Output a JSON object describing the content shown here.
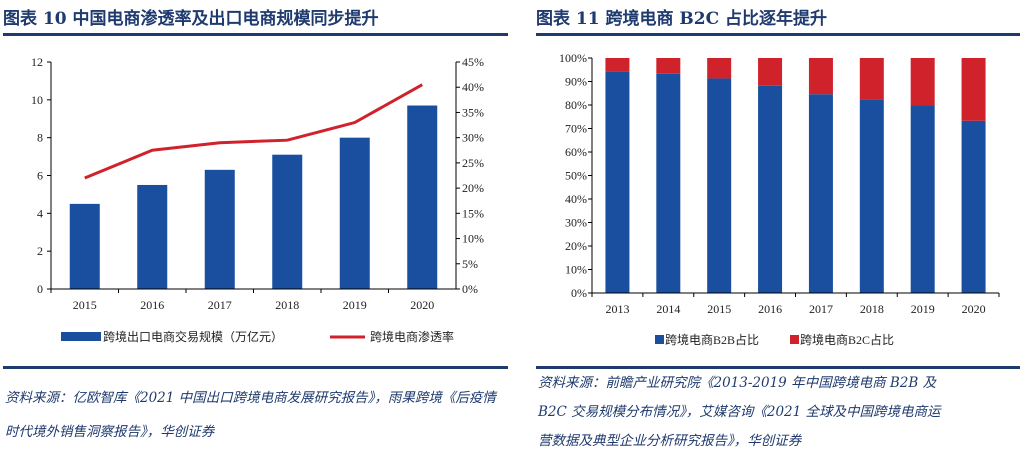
{
  "left": {
    "title": "图表 10   中国电商渗透率及出口电商规模同步提升",
    "source": "资料来源：亿欧智库《2021 中国出口跨境电商发展研究报告》，雨果跨境《后疫情时代境外销售洞察报告》，华创证券"
  },
  "right": {
    "title": "图表 11   跨境电商 B2C 占比逐年提升",
    "source_lines": [
      "资料来源：前瞻产业研究院《2013-2019 年中国跨境电商 B2B 及",
      "B2C 交易规模分布情况》，艾媒咨询《2021 全球及中国跨境电商运",
      "营数据及典型企业分析研究报告》，华创证券"
    ]
  },
  "colors": {
    "blue": "#1a4fa0",
    "red": "#d0222b",
    "rule": "#1f3a6e"
  },
  "chart_data": [
    {
      "type": "bar+line",
      "categories": [
        "2015",
        "2016",
        "2017",
        "2018",
        "2019",
        "2020"
      ],
      "series": [
        {
          "name": "跨境出口电商交易规模（万亿元）",
          "type": "bar",
          "axis": "left",
          "values": [
            4.5,
            5.5,
            6.3,
            7.1,
            8.0,
            9.7
          ]
        },
        {
          "name": "跨境电商渗透率",
          "type": "line",
          "axis": "right",
          "values": [
            22.0,
            27.5,
            29.0,
            29.5,
            33.0,
            40.5
          ]
        }
      ],
      "ylim": [
        0,
        12
      ],
      "yticks": [
        "0",
        "2",
        "4",
        "6",
        "8",
        "10",
        "12"
      ],
      "y2lim": [
        0,
        45
      ],
      "y2ticks": [
        "0%",
        "5%",
        "10%",
        "15%",
        "20%",
        "25%",
        "30%",
        "35%",
        "40%",
        "45%"
      ],
      "legend": "bottom"
    },
    {
      "type": "stacked-bar",
      "categories": [
        "2013",
        "2014",
        "2015",
        "2016",
        "2017",
        "2018",
        "2019",
        "2020"
      ],
      "series": [
        {
          "name": "跨境电商B2B占比",
          "values": [
            94.2,
            93.3,
            91.3,
            88.2,
            84.6,
            82.4,
            79.8,
            73.3
          ]
        },
        {
          "name": "跨境电商B2C占比",
          "values": [
            5.8,
            6.7,
            8.7,
            11.8,
            15.4,
            17.6,
            20.2,
            26.7
          ]
        }
      ],
      "ylim": [
        0,
        100
      ],
      "yticks": [
        "0%",
        "10%",
        "20%",
        "30%",
        "40%",
        "50%",
        "60%",
        "70%",
        "80%",
        "90%",
        "100%"
      ],
      "legend": "bottom"
    }
  ]
}
